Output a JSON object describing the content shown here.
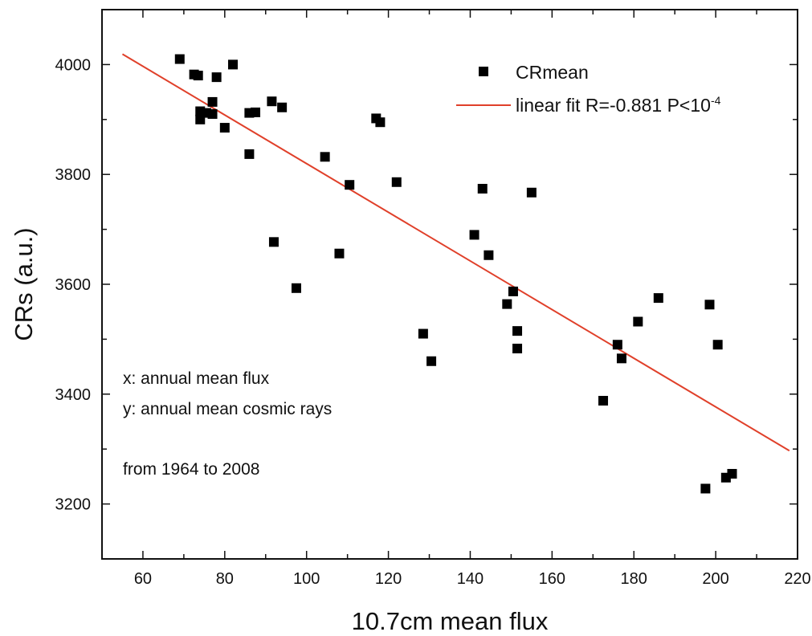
{
  "chart_data": {
    "type": "scatter",
    "xlabel": "10.7cm mean flux",
    "ylabel": "CRs (a.u.)",
    "xlim": [
      50,
      220
    ],
    "ylim": [
      3100,
      4100
    ],
    "x_ticks": [
      60,
      80,
      100,
      120,
      140,
      160,
      180,
      200,
      220
    ],
    "y_ticks": [
      3200,
      3400,
      3600,
      3800,
      4000
    ],
    "grid": false,
    "legend_position": "top-right",
    "series": [
      {
        "name": "CRmean",
        "marker": "square",
        "color": "#000000",
        "points": [
          [
            69,
            4010
          ],
          [
            72.5,
            3982
          ],
          [
            73.5,
            3980
          ],
          [
            78,
            3977
          ],
          [
            82,
            4000
          ],
          [
            74,
            3915
          ],
          [
            74,
            3900
          ],
          [
            75.5,
            3912
          ],
          [
            77,
            3932
          ],
          [
            77,
            3910
          ],
          [
            80,
            3885
          ],
          [
            86,
            3912
          ],
          [
            87.5,
            3913
          ],
          [
            91.5,
            3933
          ],
          [
            94,
            3922
          ],
          [
            86,
            3837
          ],
          [
            92,
            3677
          ],
          [
            97.5,
            3593
          ],
          [
            104.5,
            3832
          ],
          [
            110.5,
            3781
          ],
          [
            108,
            3656
          ],
          [
            117,
            3902
          ],
          [
            118,
            3895
          ],
          [
            122,
            3786
          ],
          [
            128.5,
            3510
          ],
          [
            130.5,
            3460
          ],
          [
            141,
            3690
          ],
          [
            143,
            3774
          ],
          [
            144.5,
            3653
          ],
          [
            149,
            3564
          ],
          [
            150.5,
            3587
          ],
          [
            151.5,
            3515
          ],
          [
            151.5,
            3483
          ],
          [
            155,
            3767
          ],
          [
            172.5,
            3388
          ],
          [
            176,
            3490
          ],
          [
            177,
            3465
          ],
          [
            181,
            3532
          ],
          [
            186,
            3575
          ],
          [
            197.5,
            3228
          ],
          [
            198.5,
            3563
          ],
          [
            200.5,
            3490
          ],
          [
            202.5,
            3248
          ],
          [
            204,
            3255
          ]
        ]
      },
      {
        "name": "linear fit R=-0.881  P<10",
        "name_superscript": "-4",
        "type": "line",
        "color": "#e0402a",
        "points": [
          [
            55,
            4019
          ],
          [
            218,
            3297
          ]
        ]
      }
    ],
    "annotations": [
      "x: annual mean flux",
      "y: annual mean cosmic rays",
      "from 1964 to 2008"
    ]
  }
}
